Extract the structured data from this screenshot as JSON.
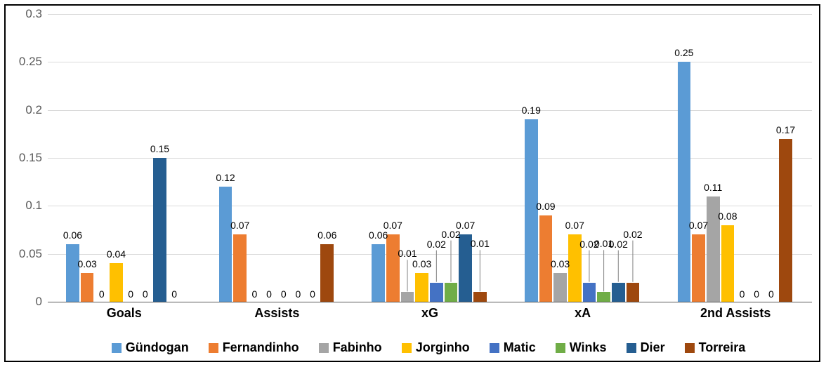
{
  "chart": {
    "type": "bar",
    "background_color": "#ffffff",
    "border_color": "#000000",
    "border_width": 2,
    "grid_color": "#d9d9d9",
    "axis_line_color": "#595959",
    "ytick_label_color": "#595959",
    "xlabel_color": "#000000",
    "value_label_color": "#000000",
    "ytick_fontsize": 17,
    "xlabel_fontsize": 18,
    "xlabel_fontweight": "bold",
    "value_label_fontsize": 14,
    "legend_fontsize": 18,
    "legend_fontweight": "bold",
    "ylim": [
      0,
      0.3
    ],
    "ytick_step": 0.05,
    "yticks": [
      "0",
      "0.05",
      "0.1",
      "0.15",
      "0.2",
      "0.25",
      "0.3"
    ],
    "categories": [
      "Goals",
      "Assists",
      "xG",
      "xA",
      "2nd Assists"
    ],
    "series": [
      {
        "name": "Gündogan",
        "color": "#5b9bd5",
        "values": [
          0.06,
          0.12,
          0.06,
          0.19,
          0.25
        ],
        "labels": [
          "0.06",
          "0.12",
          "0.06",
          "0.19",
          "0.25"
        ]
      },
      {
        "name": "Fernandinho",
        "color": "#ed7d31",
        "values": [
          0.03,
          0.07,
          0.07,
          0.09,
          0.07
        ],
        "labels": [
          "0.03",
          "0.07",
          "0.07",
          "0.09",
          "0.07"
        ]
      },
      {
        "name": "Fabinho",
        "color": "#a5a5a5",
        "values": [
          0,
          0,
          0.01,
          0.03,
          0.11
        ],
        "labels": [
          "0",
          "0",
          "0.01",
          "0.03",
          "0.11"
        ]
      },
      {
        "name": "Jorginho",
        "color": "#ffc000",
        "values": [
          0.04,
          0,
          0.03,
          0.07,
          0.08
        ],
        "labels": [
          "0.04",
          "0",
          "0.03",
          "0.07",
          "0.08"
        ]
      },
      {
        "name": "Matic",
        "color": "#4472c4",
        "values": [
          0,
          0,
          0.02,
          0.02,
          0
        ],
        "labels": [
          "0",
          "0",
          "0.02",
          "0.02",
          "0"
        ]
      },
      {
        "name": "Winks",
        "color": "#70ad47",
        "values": [
          0,
          0,
          0.02,
          0.01,
          0
        ],
        "labels": [
          "0",
          "0",
          "0.02",
          "0.01",
          "0"
        ]
      },
      {
        "name": "Dier",
        "color": "#255e91",
        "values": [
          0.15,
          0,
          0.07,
          0.02,
          0
        ],
        "labels": [
          "0.15",
          "0",
          "0.07",
          "0.02",
          "0"
        ]
      },
      {
        "name": "Torreira",
        "color": "#9e480e",
        "values": [
          0,
          0.06,
          0.01,
          0.02,
          0.17
        ],
        "labels": [
          "0",
          "0.06",
          "0.01",
          "0.02",
          "0.17"
        ]
      }
    ],
    "bar_rel_width": 0.095,
    "group_gap_rel": 0.02,
    "leader_lines": true
  },
  "legend": {
    "items": [
      {
        "key": "Gündogan",
        "color": "#5b9bd5"
      },
      {
        "key": "Fernandinho",
        "color": "#ed7d31"
      },
      {
        "key": "Fabinho",
        "color": "#a5a5a5"
      },
      {
        "key": "Jorginho",
        "color": "#ffc000"
      },
      {
        "key": "Matic",
        "color": "#4472c4"
      },
      {
        "key": "Winks",
        "color": "#70ad47"
      },
      {
        "key": "Dier",
        "color": "#255e91"
      },
      {
        "key": "Torreira",
        "color": "#9e480e"
      }
    ]
  }
}
